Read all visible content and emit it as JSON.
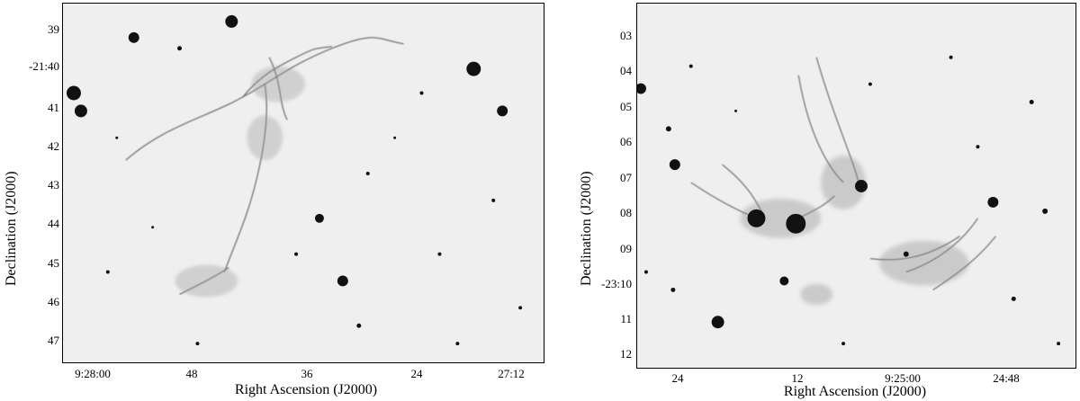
{
  "left_panel": {
    "y_axis_label": "Declination (J2000)",
    "x_axis_label": "Right Ascension (J2000)",
    "y_ticks": [
      "39",
      "-21:40",
      "41",
      "42",
      "43",
      "44",
      "45",
      "46",
      "47"
    ],
    "x_ticks": [
      "9:28:00",
      "48",
      "36",
      "24",
      "27:12"
    ]
  },
  "right_panel": {
    "y_axis_label": "Declination (J2000)",
    "x_axis_label": "Right Ascension (J2000)",
    "y_ticks": [
      "03",
      "04",
      "05",
      "06",
      "07",
      "08",
      "09",
      "-23:10",
      "11",
      "12"
    ],
    "x_ticks": [
      "24",
      "12",
      "9:25:00",
      "24:48"
    ]
  }
}
